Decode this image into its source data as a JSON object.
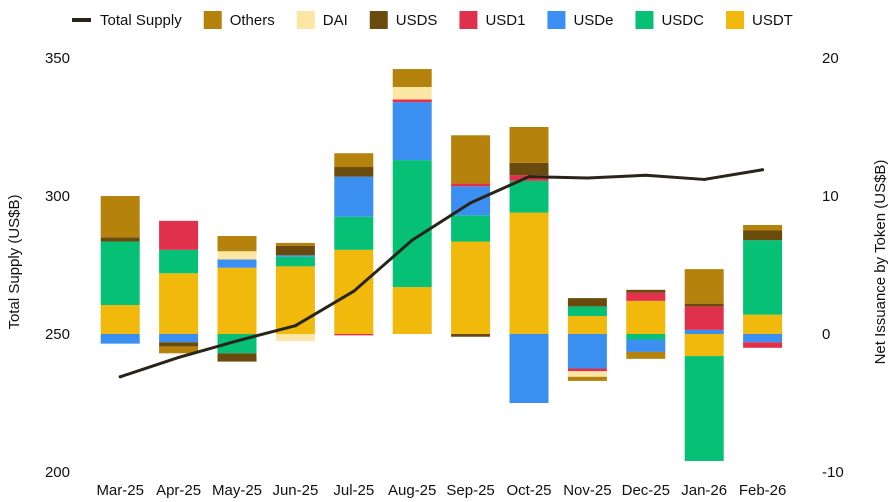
{
  "chart_data": {
    "type": "bar",
    "categories": [
      "Mar-25",
      "Apr-25",
      "May-25",
      "Jun-25",
      "Jul-25",
      "Aug-25",
      "Sep-25",
      "Oct-25",
      "Nov-25",
      "Dec-25",
      "Jan-26",
      "Feb-26"
    ],
    "ylabel_left": "Total Supply (US$B)",
    "ylabel_right": "Net Issuance by Token (US$B)",
    "ylim_left": [
      200,
      350
    ],
    "yticks_left": [
      200,
      250,
      300,
      350
    ],
    "ylim_right": [
      -10,
      20
    ],
    "yticks_right": [
      -10,
      0,
      10,
      20
    ],
    "grid": false,
    "legend_position": "top",
    "line_series": {
      "name": "Total Supply",
      "axis": "left",
      "color": "#2a2418",
      "values": [
        -3.1,
        -1.7,
        -0.5,
        0.6,
        3.1,
        6.8,
        9.5,
        11.4,
        11.3,
        11.5,
        11.2,
        11.9
      ]
    },
    "bar_series": [
      {
        "name": "USDT",
        "color": "#f0b90b",
        "values": [
          2.1,
          4.4,
          4.8,
          4.9,
          6.1,
          3.4,
          6.7,
          8.8,
          1.3,
          2.4,
          -1.6,
          1.4
        ]
      },
      {
        "name": "USDC",
        "color": "#05c075",
        "values": [
          4.6,
          1.7,
          -1.4,
          0.7,
          2.4,
          9.2,
          1.9,
          2.3,
          0.7,
          -0.4,
          -7.6,
          5.4
        ]
      },
      {
        "name": "USDe",
        "color": "#3b8ff0",
        "values": [
          -0.7,
          -0.6,
          0.6,
          0.1,
          2.9,
          4.2,
          2.1,
          -5.0,
          -2.5,
          -0.9,
          0.3,
          -0.6
        ]
      },
      {
        "name": "USD1",
        "color": "#e0304c",
        "values": [
          0.0,
          2.1,
          0.0,
          0.0,
          -0.1,
          0.2,
          0.2,
          0.4,
          -0.2,
          0.6,
          1.7,
          -0.4
        ]
      },
      {
        "name": "USDS",
        "color": "#6b4a0e",
        "values": [
          0.3,
          -0.3,
          -0.6,
          0.7,
          0.7,
          0.0,
          -0.2,
          0.9,
          0.6,
          0.2,
          0.2,
          0.7
        ]
      },
      {
        "name": "DAI",
        "color": "#fbe6a3",
        "values": [
          0.0,
          0.0,
          0.6,
          -0.5,
          0.0,
          0.9,
          0.0,
          0.0,
          -0.4,
          0.0,
          0.0,
          0.0
        ]
      },
      {
        "name": "Others",
        "color": "#b5830c",
        "values": [
          3.0,
          -0.5,
          1.1,
          0.2,
          1.0,
          1.3,
          3.5,
          2.6,
          -0.3,
          -0.5,
          2.5,
          0.4
        ]
      }
    ],
    "legend": [
      {
        "name": "Total Supply",
        "kind": "line",
        "color": "#2a2418"
      },
      {
        "name": "Others",
        "kind": "box",
        "color": "#b5830c"
      },
      {
        "name": "DAI",
        "kind": "box",
        "color": "#fbe6a3"
      },
      {
        "name": "USDS",
        "kind": "box",
        "color": "#6b4a0e"
      },
      {
        "name": "USD1",
        "kind": "box",
        "color": "#e0304c"
      },
      {
        "name": "USDe",
        "kind": "box",
        "color": "#3b8ff0"
      },
      {
        "name": "USDC",
        "kind": "box",
        "color": "#05c075"
      },
      {
        "name": "USDT",
        "kind": "box",
        "color": "#f0b90b"
      }
    ]
  }
}
